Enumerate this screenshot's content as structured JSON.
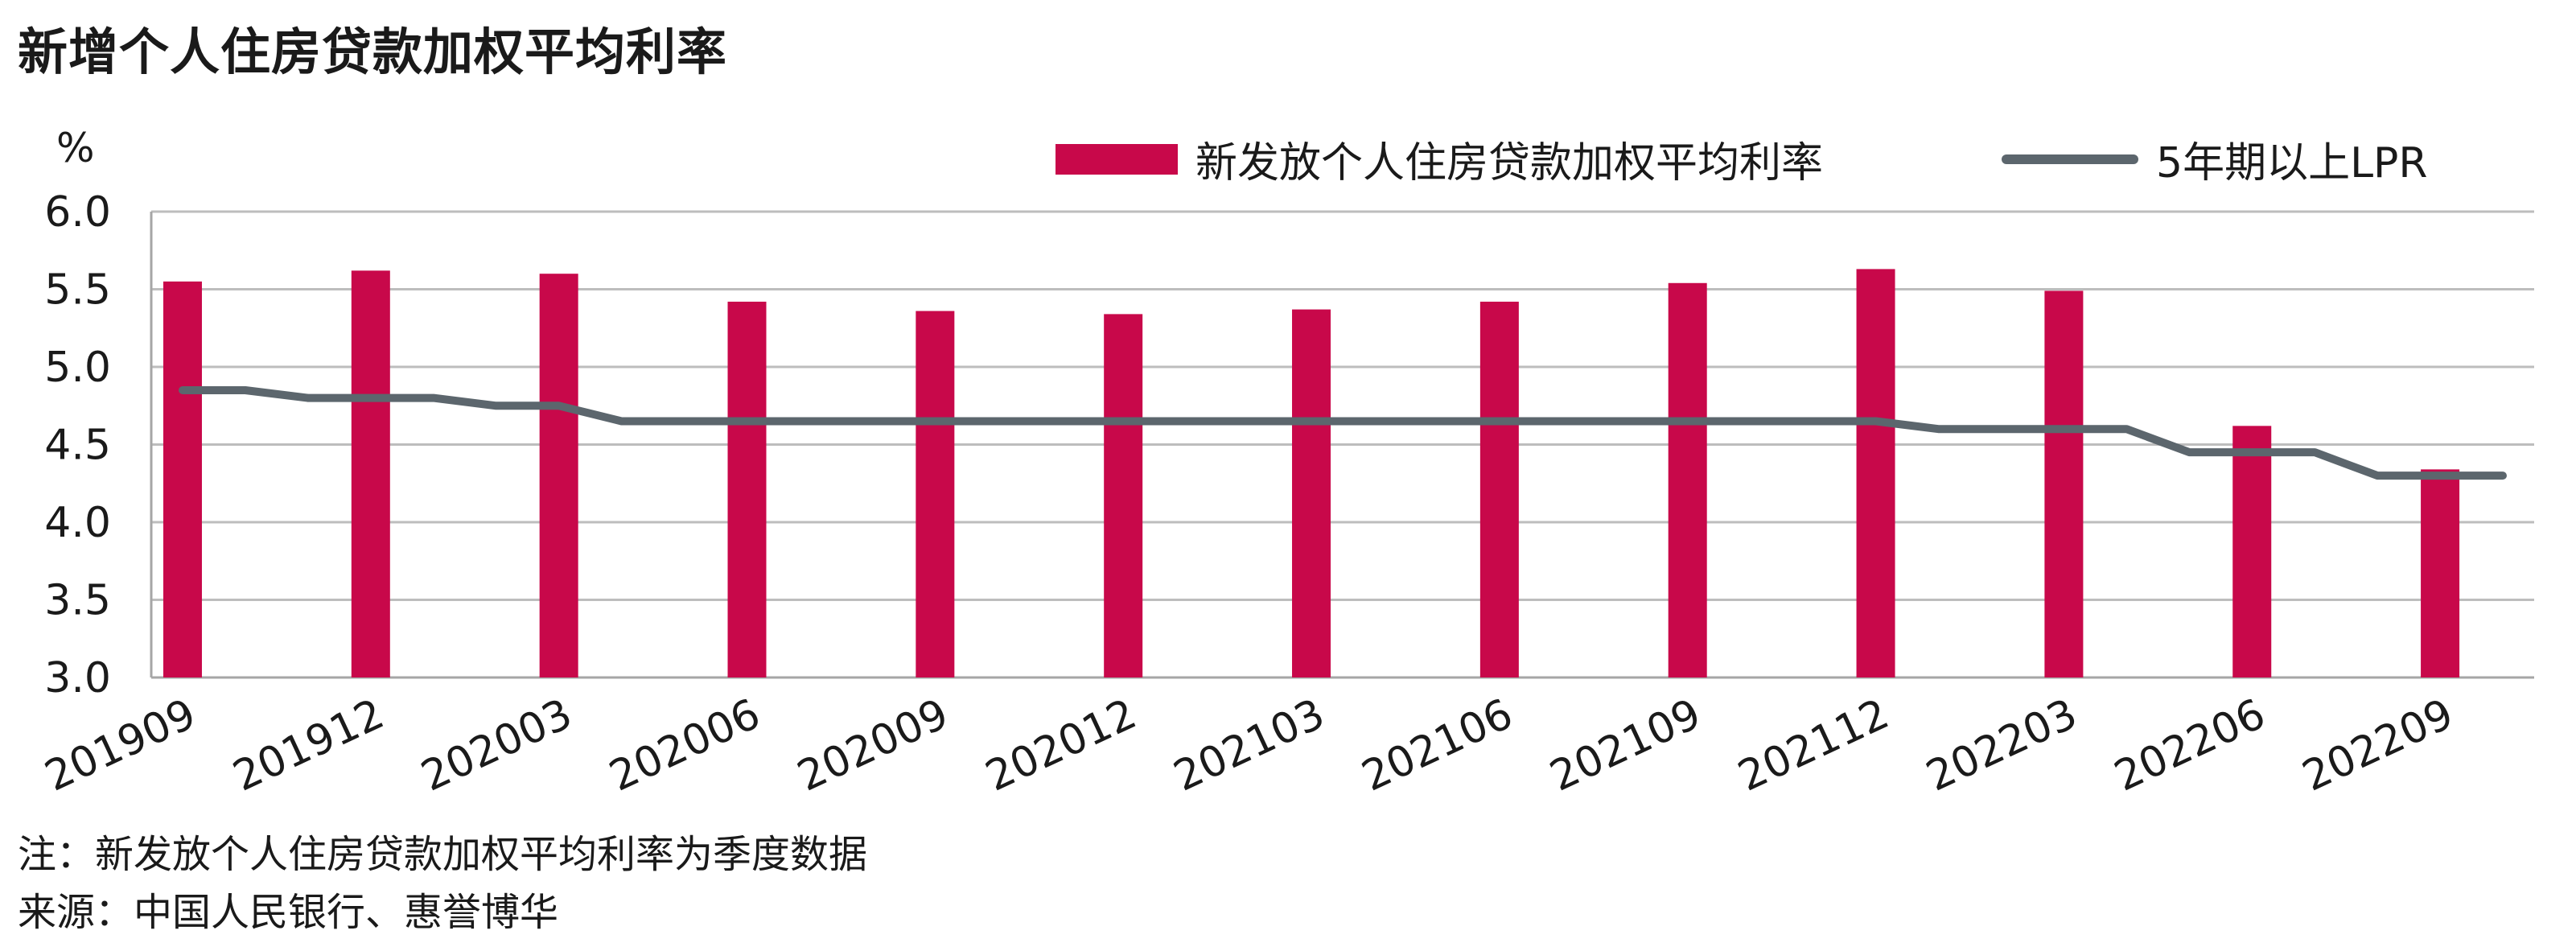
{
  "title": "新增个人住房贷款加权平均利率",
  "unit_label": "%",
  "notes": {
    "note": "注：新发放个人住房贷款加权平均利率为季度数据",
    "source": "来源：中国人民银行、惠誉博华"
  },
  "colors": {
    "bar": "#C8084A",
    "line": "#5C666D",
    "grid": "#BDBDBD",
    "axis": "#A6A6A6",
    "text": "#1a1a1a"
  },
  "chart_data": {
    "type": "bar+line",
    "ylim": [
      3.0,
      6.0
    ],
    "yticks": [
      "3.0",
      "3.5",
      "4.0",
      "4.5",
      "5.0",
      "5.5",
      "6.0"
    ],
    "grid": true,
    "legend_position": "top-right",
    "bar_series": {
      "name": "新发放个人住房贷款加权平均利率",
      "categories": [
        "201909",
        "201912",
        "202003",
        "202006",
        "202009",
        "202012",
        "202103",
        "202106",
        "202109",
        "202112",
        "202203",
        "202206",
        "202209"
      ],
      "values": [
        5.55,
        5.62,
        5.6,
        5.42,
        5.36,
        5.34,
        5.37,
        5.42,
        5.54,
        5.63,
        5.49,
        4.62,
        4.34
      ]
    },
    "line_series": {
      "name": "5年期以上LPR",
      "months": [
        "201909",
        "201910",
        "201911",
        "201912",
        "202001",
        "202002",
        "202003",
        "202004",
        "202005",
        "202006",
        "202007",
        "202008",
        "202009",
        "202010",
        "202011",
        "202012",
        "202101",
        "202102",
        "202103",
        "202104",
        "202105",
        "202106",
        "202107",
        "202108",
        "202109",
        "202110",
        "202111",
        "202112",
        "202201",
        "202202",
        "202203",
        "202204",
        "202205",
        "202206",
        "202207",
        "202208",
        "202209",
        "202210"
      ],
      "values": [
        4.85,
        4.85,
        4.8,
        4.8,
        4.8,
        4.75,
        4.75,
        4.65,
        4.65,
        4.65,
        4.65,
        4.65,
        4.65,
        4.65,
        4.65,
        4.65,
        4.65,
        4.65,
        4.65,
        4.65,
        4.65,
        4.65,
        4.65,
        4.65,
        4.65,
        4.65,
        4.65,
        4.65,
        4.6,
        4.6,
        4.6,
        4.6,
        4.45,
        4.45,
        4.45,
        4.3,
        4.3,
        4.3
      ]
    }
  }
}
